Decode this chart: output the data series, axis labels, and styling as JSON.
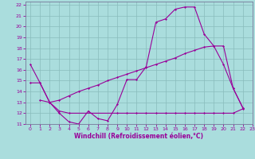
{
  "bg_color": "#aadddd",
  "grid_color": "#88bbbb",
  "line_color": "#990099",
  "xlim": [
    -0.5,
    23
  ],
  "ylim": [
    11,
    22.3
  ],
  "xlabel": "Windchill (Refroidissement éolien,°C)",
  "yticks": [
    11,
    12,
    13,
    14,
    15,
    16,
    17,
    18,
    19,
    20,
    21,
    22
  ],
  "xticks": [
    0,
    1,
    2,
    3,
    4,
    5,
    6,
    7,
    8,
    9,
    10,
    11,
    12,
    13,
    14,
    15,
    16,
    17,
    18,
    19,
    20,
    21,
    22,
    23
  ],
  "line1_x": [
    0,
    1,
    2,
    3,
    4,
    5,
    6,
    7,
    8,
    9,
    10,
    11,
    12,
    13,
    14,
    15,
    16,
    17,
    18,
    19,
    20,
    21,
    22
  ],
  "line1_y": [
    16.5,
    14.8,
    13.0,
    12.0,
    11.2,
    11.0,
    12.2,
    11.5,
    11.3,
    12.8,
    15.1,
    15.1,
    16.3,
    20.4,
    20.7,
    21.6,
    21.8,
    21.8,
    19.3,
    18.2,
    16.5,
    14.3,
    12.5
  ],
  "line2_x": [
    0,
    1,
    2,
    3,
    4,
    9,
    10,
    11,
    12,
    13,
    14,
    15,
    16,
    17,
    18,
    19,
    20,
    21,
    22
  ],
  "line2_y": [
    14.8,
    14.8,
    13.0,
    12.2,
    12.0,
    12.0,
    12.0,
    12.0,
    12.0,
    12.0,
    12.0,
    12.0,
    12.0,
    12.0,
    12.0,
    12.0,
    12.0,
    12.0,
    12.4
  ],
  "line3_x": [
    1,
    2,
    3,
    4,
    5,
    6,
    7,
    8,
    9,
    10,
    11,
    12,
    13,
    14,
    15,
    16,
    17,
    18,
    19,
    20,
    21,
    22
  ],
  "line3_y": [
    13.2,
    13.0,
    13.2,
    13.6,
    14.0,
    14.3,
    14.6,
    15.0,
    15.3,
    15.6,
    15.9,
    16.2,
    16.5,
    16.8,
    17.1,
    17.5,
    17.8,
    18.1,
    18.2,
    18.2,
    14.3,
    12.5
  ]
}
